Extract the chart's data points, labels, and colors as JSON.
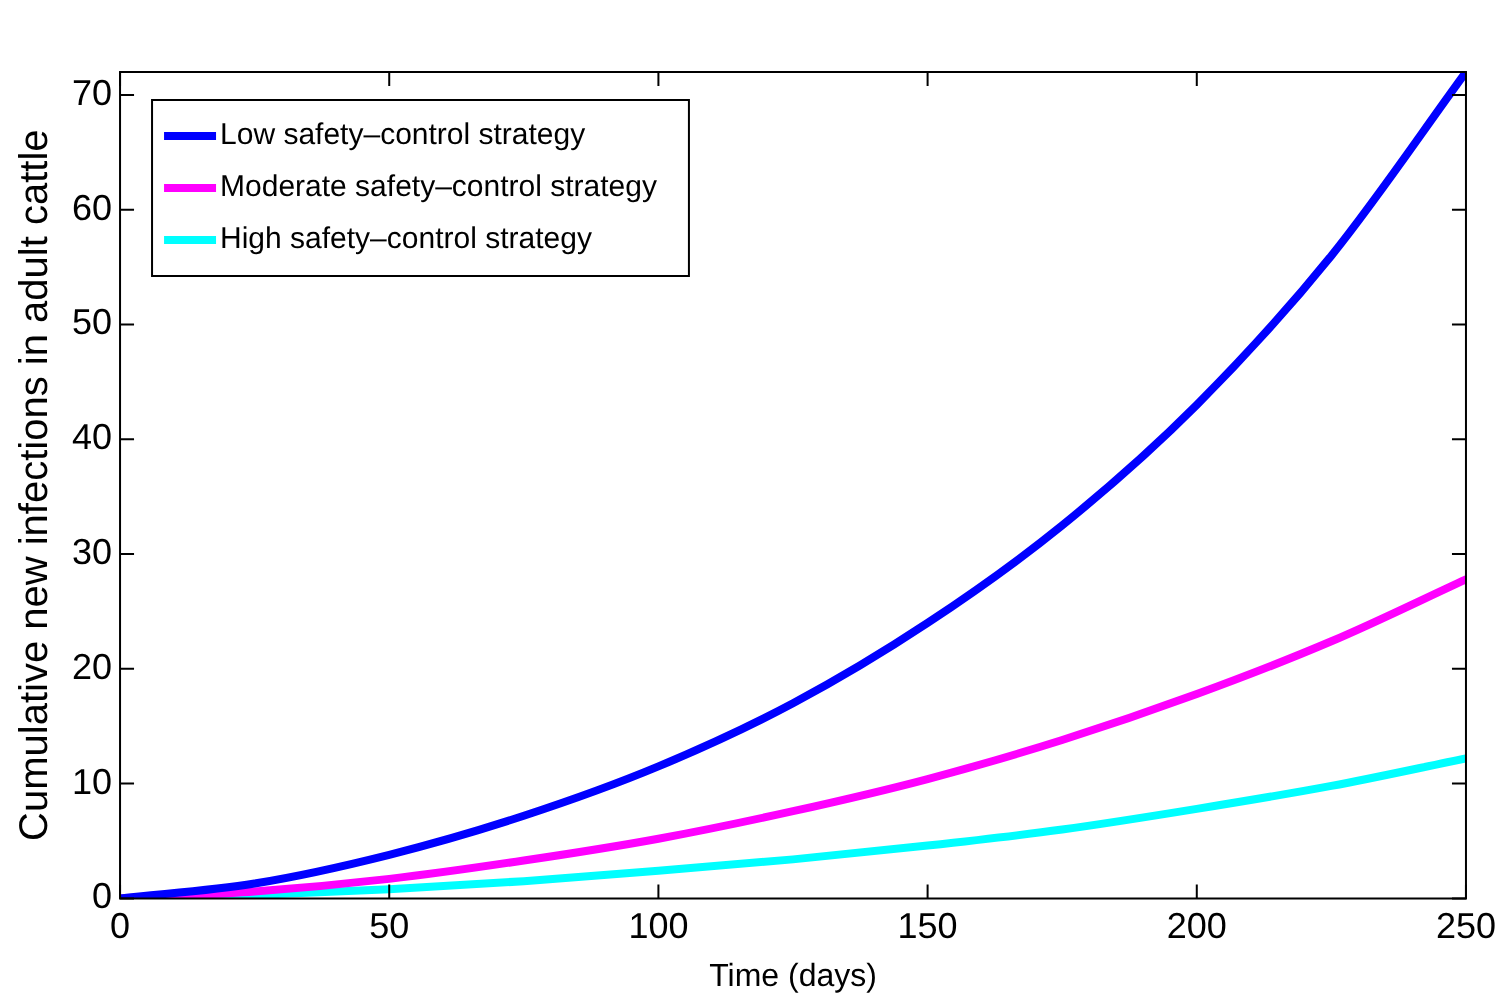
{
  "chart_data": {
    "type": "line",
    "xlabel": "Time (days)",
    "ylabel": "Cumulative new infections in adult cattle",
    "x": [
      0,
      25,
      50,
      75,
      100,
      125,
      150,
      175,
      200,
      225,
      250
    ],
    "series": [
      {
        "name": "Low safety–control strategy",
        "color": "#0000ff",
        "values": [
          0,
          1.3,
          3.8,
          7.2,
          11.5,
          17,
          24,
          32.5,
          43,
          56,
          72
        ]
      },
      {
        "name": "Moderate safety–control strategy",
        "color": "#ff00ff",
        "values": [
          0,
          0.6,
          1.7,
          3.3,
          5.2,
          7.6,
          10.4,
          13.8,
          17.8,
          22.4,
          27.8
        ]
      },
      {
        "name": "High safety–control strategy",
        "color": "#00ffff",
        "values": [
          0,
          0.3,
          0.8,
          1.5,
          2.4,
          3.4,
          4.6,
          6,
          7.8,
          9.8,
          12.2
        ]
      }
    ],
    "xlim": [
      0,
      250
    ],
    "xticks": [
      0,
      50,
      100,
      150,
      200,
      250
    ],
    "ylim": [
      0,
      72
    ],
    "yticks": [
      0,
      10,
      20,
      30,
      40,
      50,
      60,
      70
    ],
    "grid": false,
    "legend": "top left",
    "marker": "none",
    "line_style": "solid"
  }
}
